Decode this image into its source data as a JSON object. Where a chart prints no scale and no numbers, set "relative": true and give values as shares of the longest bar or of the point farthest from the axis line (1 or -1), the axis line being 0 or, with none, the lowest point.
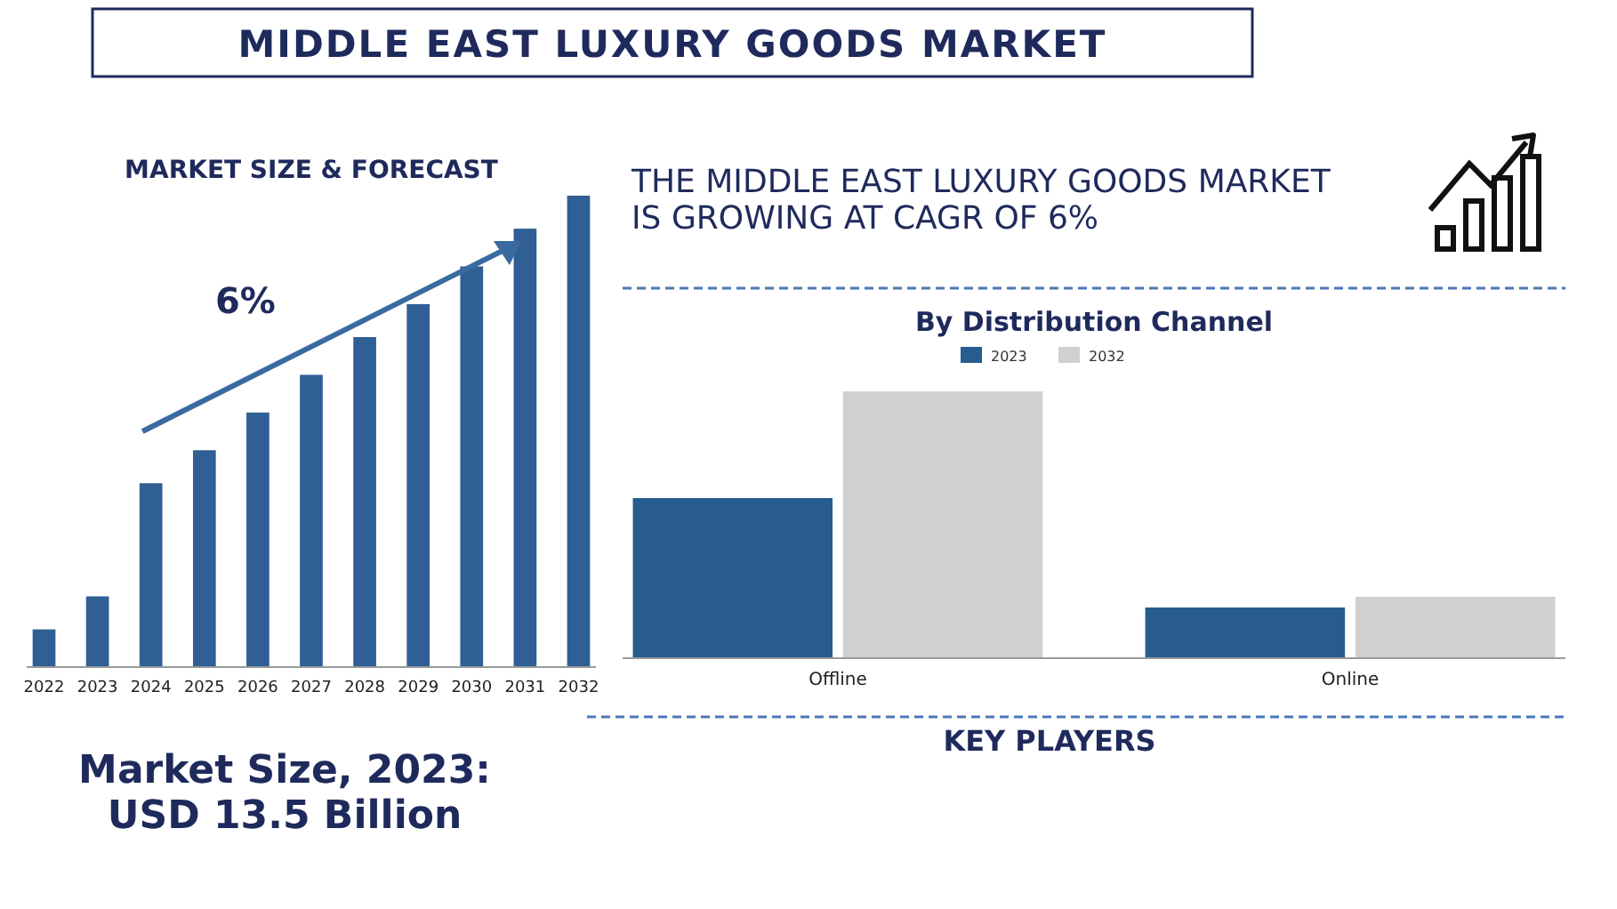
{
  "chart_data": [
    {
      "type": "other",
      "title": "MIDDLE EAST LUXURY GOODS MARKET",
      "annotations": [
        "THE MIDDLE EAST LUXURY GOODS MARKET IS GROWING AT CAGR OF 6%",
        "KEY PLAYERS"
      ]
    },
    {
      "type": "bar",
      "title": "MARKET SIZE & FORECAST",
      "categories": [
        "2022",
        "2023",
        "2024",
        "2025",
        "2026",
        "2027",
        "2028",
        "2029",
        "2030",
        "2031",
        "2032"
      ],
      "values": [
        0.08,
        0.15,
        0.39,
        0.46,
        0.54,
        0.62,
        0.7,
        0.77,
        0.85,
        0.93,
        1
      ],
      "color": "#2f5f94",
      "relative": true,
      "annotations": [
        "6%",
        "Market Size, 2023: USD 13.5 Billion"
      ]
    },
    {
      "type": "bar",
      "title": "By Distribution Channel",
      "categories": [
        "Offline",
        "Online"
      ],
      "relative": true,
      "legend": "top",
      "series": [
        {
          "name": "2023",
          "color": "#285c8f",
          "values": [
            0.6,
            0.19
          ]
        },
        {
          "name": "2032",
          "color": "#d0d0d0",
          "values": [
            1,
            0.23
          ]
        }
      ]
    }
  ]
}
